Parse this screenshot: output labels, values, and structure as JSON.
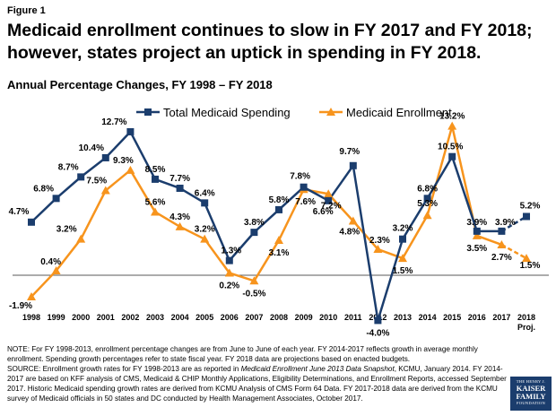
{
  "figure_label": "Figure 1",
  "title_line1": "Medicaid enrollment continues to slow in FY 2017 and FY 2018;",
  "title_line2": "however, states project an uptick in spending in FY 2018.",
  "notes": {
    "note": "NOTE: For FY 1998-2013, enrollment percentage changes are from June to June of each year. FY 2014-2017 reflects growth in average monthly enrollment. Spending growth percentages refer to state fiscal year. FY 2018 data are projections based on enacted budgets.",
    "source_a": "SOURCE: Enrollment growth rates for FY 1998-2013 are as reported in ",
    "source_title": "Medicaid Enrollment June 2013 Data Snapshot",
    "source_b": ", KCMU, January 2014. FY 2014-2017 are based on KFF analysis of CMS, Medicaid & CHIP Monthly Applications, Eligibility Determinations, and Enrollment Reports, accessed September 2017. Historic Medicaid spending growth rates are derived from KCMU Analysis of CMS Form 64 Data. FY 2017-2018 data are derived from the KCMU survey of Medicaid officials in 50 states and DC conducted by Health Management Associates, October 2017."
  },
  "logo": {
    "line1": "THE HENRY J.",
    "line2": "KAISER",
    "line3": "FAMILY",
    "line4": "FOUNDATION"
  },
  "colors": {
    "spending": "#1b3d6d",
    "enrollment": "#f7941d",
    "axis": "#595959"
  },
  "chart_data": {
    "type": "line",
    "title": "Annual Percentage Changes, FY 1998 – FY 2018",
    "xlabel": "",
    "ylabel": "",
    "ylim": [
      -5,
      15
    ],
    "x_axis_crosses_at": 0,
    "legend_position": "top",
    "categories": [
      "1998",
      "1999",
      "2000",
      "2001",
      "2002",
      "2003",
      "2004",
      "2005",
      "2006",
      "2007",
      "2008",
      "2009",
      "2010",
      "2011",
      "2012",
      "2013",
      "2014",
      "2015",
      "2016",
      "2017",
      "2018"
    ],
    "category_sublabels": {
      "2018": "Proj."
    },
    "projected_from_index": 19,
    "series": [
      {
        "name": "Total Medicaid Spending",
        "marker": "square",
        "values": [
          4.7,
          6.8,
          8.7,
          10.4,
          12.7,
          8.5,
          7.7,
          6.4,
          1.3,
          3.8,
          5.8,
          7.8,
          6.6,
          9.7,
          -4.0,
          3.2,
          6.8,
          10.5,
          3.9,
          3.9,
          5.2
        ],
        "labels": [
          "4.7%",
          "6.8%",
          "8.7%",
          "10.4%",
          "12.7%",
          "8.5%",
          "7.7%",
          "6.4%",
          "1.3%",
          "3.8%",
          "5.8%",
          "7.8%",
          "6.6%",
          "9.7%",
          "-4.0%",
          "3.2%",
          "6.8%",
          "10.5%",
          "3.9%",
          "3.9%",
          "5.2%"
        ]
      },
      {
        "name": "Medicaid Enrollment",
        "marker": "triangle",
        "values": [
          -1.9,
          0.4,
          3.2,
          7.5,
          9.3,
          5.6,
          4.3,
          3.2,
          0.2,
          -0.5,
          3.1,
          7.6,
          7.2,
          4.8,
          2.3,
          1.5,
          5.3,
          13.2,
          3.5,
          2.7,
          1.5
        ],
        "labels": [
          "-1.9%",
          "0.4%",
          "3.2%",
          "7.5%",
          "9.3%",
          "5.6%",
          "4.3%",
          "3.2%",
          "0.2%",
          "-0.5%",
          "3.1%",
          "7.6%",
          "7.2%",
          "4.8%",
          "2.3%",
          "1.5%",
          "5.3%",
          "13.2%",
          "3.5%",
          "2.7%",
          "1.5%"
        ]
      }
    ]
  }
}
